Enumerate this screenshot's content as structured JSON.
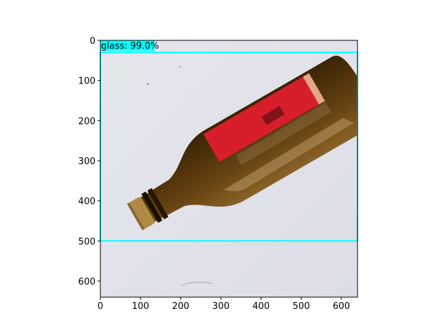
{
  "detections": [
    {
      "label": "glass: 99.0%",
      "class_name": "glass",
      "score": 0.99,
      "box": {
        "x_min": 0,
        "y_min": 30,
        "x_max": 640,
        "y_max": 500
      },
      "box_color": "#00ffff",
      "label_bg_color": "#00ffff"
    }
  ],
  "axes": {
    "x_ticks": [
      "0",
      "100",
      "200",
      "300",
      "400",
      "500",
      "600"
    ],
    "y_ticks": [
      "0",
      "100",
      "200",
      "300",
      "400",
      "500",
      "600"
    ],
    "x_tick_values": [
      0,
      100,
      200,
      300,
      400,
      500,
      600
    ],
    "y_tick_values": [
      0,
      100,
      200,
      300,
      400,
      500,
      600
    ],
    "x_range": [
      0,
      640
    ],
    "y_range": [
      0,
      640
    ],
    "y_inverted": true
  },
  "image": {
    "subject": "brown glass bottle with red label lying diagonally on a white surface",
    "background_color": "#e3e4ea",
    "bottle_color": "#5a3a10",
    "label_color": "#d81e2a",
    "cap_color": "#b08a45"
  }
}
